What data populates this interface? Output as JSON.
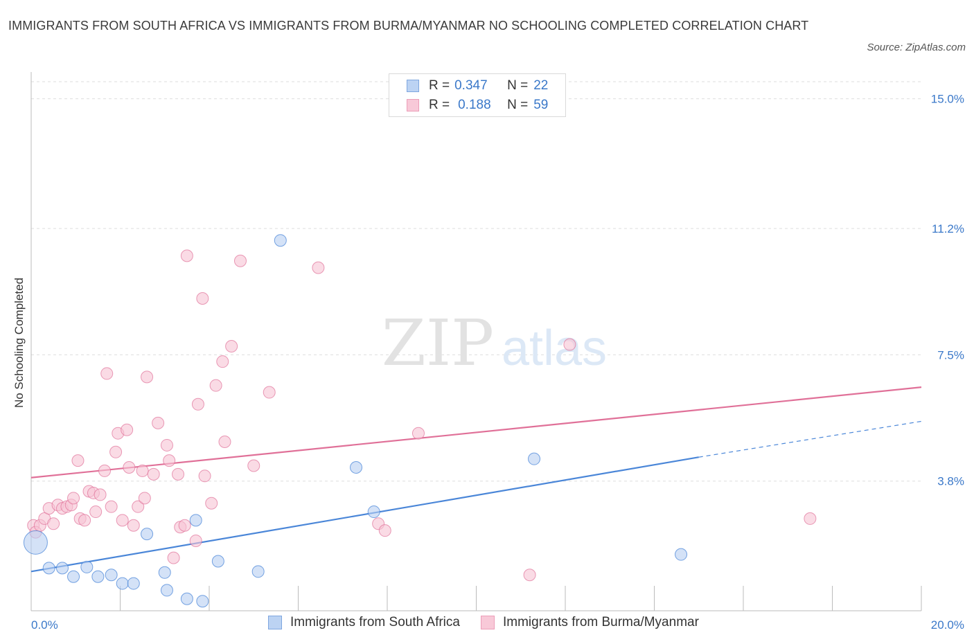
{
  "title": "IMMIGRANTS FROM SOUTH AFRICA VS IMMIGRANTS FROM BURMA/MYANMAR NO SCHOOLING COMPLETED CORRELATION CHART",
  "source": "Source: ZipAtlas.com",
  "watermark": {
    "zip": "ZIP",
    "atlas": "atlas"
  },
  "legend": {
    "rows": [
      {
        "r_label": "R =",
        "r_value": "0.347",
        "n_label": "N =",
        "n_value": "22"
      },
      {
        "r_label": "R =",
        "r_value": "0.188",
        "n_label": "N =",
        "n_value": "59"
      }
    ]
  },
  "chart_data": {
    "type": "scatter",
    "ylabel": "No Schooling Completed",
    "xlim": [
      0,
      20
    ],
    "ylim": [
      0,
      15.5
    ],
    "x_tick_labels": [
      "0.0%",
      "20.0%"
    ],
    "y_ticks": [
      {
        "value": 3.8,
        "label": "3.8%"
      },
      {
        "value": 7.5,
        "label": "7.5%"
      },
      {
        "value": 11.2,
        "label": "11.2%"
      },
      {
        "value": 15.0,
        "label": "15.0%"
      }
    ],
    "grid": true,
    "legend_position": "bottom",
    "series": [
      {
        "name": "Immigrants from South Africa",
        "color": "#4a86d8",
        "fill": "#b7cff1",
        "points": [
          [
            0.1,
            2.0
          ],
          [
            0.4,
            1.25
          ],
          [
            0.7,
            1.25
          ],
          [
            0.95,
            1.0
          ],
          [
            1.25,
            1.28
          ],
          [
            1.5,
            1.0
          ],
          [
            1.8,
            1.05
          ],
          [
            2.05,
            0.8
          ],
          [
            2.3,
            0.8
          ],
          [
            2.6,
            2.25
          ],
          [
            3.0,
            1.12
          ],
          [
            3.05,
            0.6
          ],
          [
            3.5,
            0.35
          ],
          [
            3.7,
            2.65
          ],
          [
            3.85,
            0.28
          ],
          [
            4.2,
            1.45
          ],
          [
            5.1,
            1.15
          ],
          [
            5.6,
            10.85
          ],
          [
            7.3,
            4.2
          ],
          [
            7.7,
            2.9
          ],
          [
            11.3,
            4.45
          ],
          [
            14.6,
            1.65
          ]
        ],
        "trend": {
          "x_start": 0,
          "y_start": 1.15,
          "x_end": 15.0,
          "y_end": 4.5,
          "dash_x_end": 20,
          "dash_y_end": 5.55
        }
      },
      {
        "name": "Immigrants from Burma/Myanmar",
        "color": "#e07098",
        "fill": "#f6c3d4",
        "points": [
          [
            0.05,
            2.5
          ],
          [
            0.1,
            2.3
          ],
          [
            0.2,
            2.5
          ],
          [
            0.3,
            2.7
          ],
          [
            0.4,
            3.0
          ],
          [
            0.5,
            2.55
          ],
          [
            0.6,
            3.1
          ],
          [
            0.7,
            3.0
          ],
          [
            0.8,
            3.05
          ],
          [
            0.9,
            3.1
          ],
          [
            0.95,
            3.3
          ],
          [
            1.05,
            4.4
          ],
          [
            1.1,
            2.7
          ],
          [
            1.2,
            2.65
          ],
          [
            1.3,
            3.5
          ],
          [
            1.4,
            3.45
          ],
          [
            1.45,
            2.9
          ],
          [
            1.55,
            3.4
          ],
          [
            1.65,
            4.1
          ],
          [
            1.7,
            6.95
          ],
          [
            1.8,
            3.05
          ],
          [
            1.9,
            4.65
          ],
          [
            1.95,
            5.2
          ],
          [
            2.05,
            2.65
          ],
          [
            2.15,
            5.3
          ],
          [
            2.2,
            4.2
          ],
          [
            2.3,
            2.5
          ],
          [
            2.4,
            3.05
          ],
          [
            2.5,
            4.1
          ],
          [
            2.55,
            3.3
          ],
          [
            2.6,
            6.85
          ],
          [
            2.75,
            4.0
          ],
          [
            2.85,
            5.5
          ],
          [
            3.05,
            4.85
          ],
          [
            3.1,
            4.4
          ],
          [
            3.2,
            1.55
          ],
          [
            3.3,
            4.0
          ],
          [
            3.35,
            2.45
          ],
          [
            3.45,
            2.5
          ],
          [
            3.5,
            10.4
          ],
          [
            3.7,
            2.05
          ],
          [
            3.75,
            6.05
          ],
          [
            3.85,
            9.15
          ],
          [
            3.9,
            3.95
          ],
          [
            4.05,
            3.15
          ],
          [
            4.15,
            6.6
          ],
          [
            4.3,
            7.3
          ],
          [
            4.35,
            4.95
          ],
          [
            4.5,
            7.75
          ],
          [
            4.7,
            10.25
          ],
          [
            5.0,
            4.25
          ],
          [
            5.35,
            6.4
          ],
          [
            6.45,
            10.05
          ],
          [
            7.8,
            2.55
          ],
          [
            7.95,
            2.35
          ],
          [
            8.7,
            5.2
          ],
          [
            11.2,
            1.05
          ],
          [
            12.1,
            7.8
          ],
          [
            17.5,
            2.7
          ]
        ],
        "trend": {
          "x_start": 0,
          "y_start": 3.9,
          "x_end": 20,
          "y_end": 6.55
        }
      }
    ]
  },
  "bottom_legend": [
    {
      "label": "Immigrants from South Africa"
    },
    {
      "label": "Immigrants from Burma/Myanmar"
    }
  ]
}
